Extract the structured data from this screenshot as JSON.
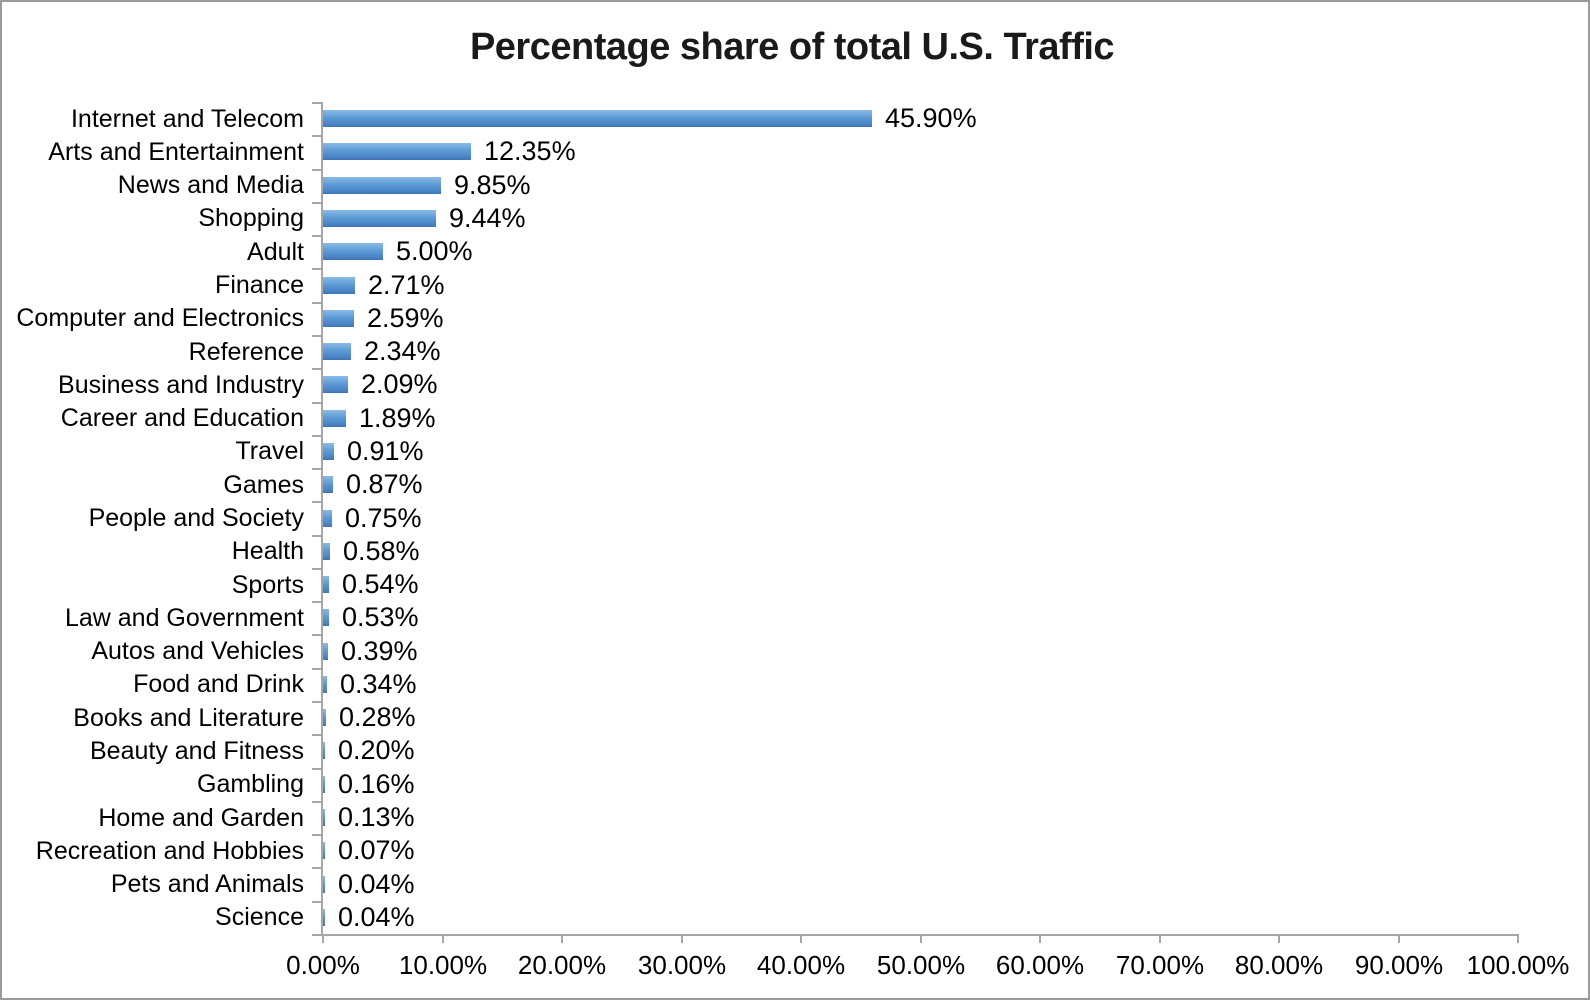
{
  "window": {
    "background": "#ffffff",
    "border_color": "#9b9b9b"
  },
  "chart_data": {
    "type": "bar",
    "orientation": "horizontal",
    "title": "Percentage share of total U.S. Traffic",
    "xlabel": "",
    "ylabel": "",
    "xlim": [
      0,
      100
    ],
    "grid": "off",
    "legend": "none",
    "data_labels": "outside-end",
    "categories": [
      "Internet and Telecom",
      "Arts and Entertainment",
      "News and Media",
      "Shopping",
      "Adult",
      "Finance",
      "Computer and Electronics",
      "Reference",
      "Business and Industry",
      "Career and Education",
      "Travel",
      "Games",
      "People and Society",
      "Health",
      "Sports",
      "Law and Government",
      "Autos and Vehicles",
      "Food and Drink",
      "Books and Literature",
      "Beauty and Fitness",
      "Gambling",
      "Home and Garden",
      "Recreation and Hobbies",
      "Pets and Animals",
      "Science"
    ],
    "values": [
      45.9,
      12.35,
      9.85,
      9.44,
      5.0,
      2.71,
      2.59,
      2.34,
      2.09,
      1.89,
      0.91,
      0.87,
      0.75,
      0.58,
      0.54,
      0.53,
      0.39,
      0.34,
      0.28,
      0.2,
      0.16,
      0.13,
      0.07,
      0.04,
      0.04
    ],
    "value_labels": [
      "45.90%",
      "12.35%",
      "9.85%",
      "9.44%",
      "5.00%",
      "2.71%",
      "2.59%",
      "2.34%",
      "2.09%",
      "1.89%",
      "0.91%",
      "0.87%",
      "0.75%",
      "0.58%",
      "0.54%",
      "0.53%",
      "0.39%",
      "0.34%",
      "0.28%",
      "0.20%",
      "0.16%",
      "0.13%",
      "0.07%",
      "0.04%",
      "0.04%"
    ],
    "x_tick_values": [
      0,
      10,
      20,
      30,
      40,
      50,
      60,
      70,
      80,
      90,
      100
    ],
    "x_tick_labels": [
      "0.00%",
      "10.00%",
      "20.00%",
      "30.00%",
      "40.00%",
      "50.00%",
      "60.00%",
      "70.00%",
      "80.00%",
      "90.00%",
      "100.00%"
    ],
    "colors": {
      "bar_top": "#8cbae5",
      "bar_mid": "#5b9bd5",
      "bar_bottom": "#3e74b4",
      "axis": "#a6a6a6",
      "text": "#000000",
      "title": "#1a1a1a"
    }
  }
}
